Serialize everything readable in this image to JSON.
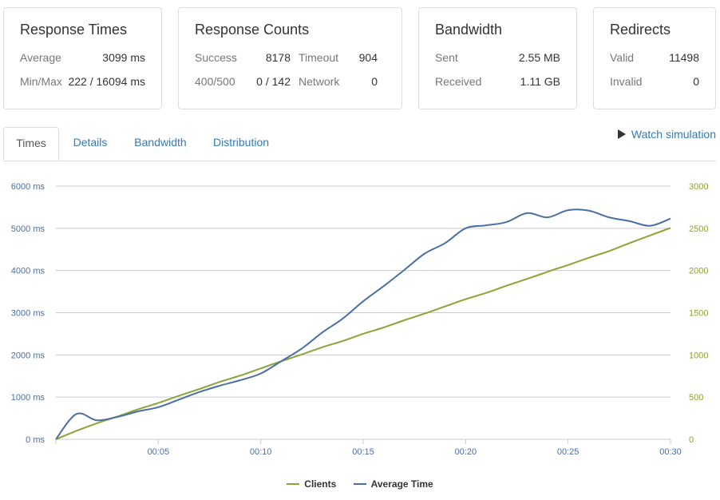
{
  "cards": {
    "response_times": {
      "title": "Response Times",
      "average_label": "Average",
      "average_value": "3099 ms",
      "minmax_label": "Min/Max",
      "minmax_value": "222 / 16094 ms"
    },
    "response_counts": {
      "title": "Response Counts",
      "success_label": "Success",
      "success_value": "8178",
      "timeout_label": "Timeout",
      "timeout_value": "904",
      "http_errors_label": "400/500",
      "http_errors_value": "0 / 142",
      "network_label": "Network",
      "network_value": "0"
    },
    "bandwidth": {
      "title": "Bandwidth",
      "sent_label": "Sent",
      "sent_value": "2.55 MB",
      "received_label": "Received",
      "received_value": "1.11 GB"
    },
    "redirects": {
      "title": "Redirects",
      "valid_label": "Valid",
      "valid_value": "11498",
      "invalid_label": "Invalid",
      "invalid_value": "0"
    }
  },
  "tabs": {
    "times": "Times",
    "details": "Details",
    "bandwidth": "Bandwidth",
    "distribution": "Distribution",
    "active": "times"
  },
  "watch_simulation": "Watch simulation",
  "chart_data": {
    "type": "line",
    "x_ticks": [
      "00:05",
      "00:10",
      "00:15",
      "00:20",
      "00:25",
      "00:30"
    ],
    "x_tick_values": [
      5,
      10,
      15,
      20,
      25,
      30
    ],
    "xlim": [
      0,
      30
    ],
    "y_left": {
      "ticks": [
        "0 ms",
        "1000 ms",
        "2000 ms",
        "3000 ms",
        "4000 ms",
        "5000 ms",
        "6000 ms"
      ],
      "lim": [
        0,
        6000
      ],
      "color": "#4a6fa5"
    },
    "y_right": {
      "ticks": [
        "0",
        "500",
        "1000",
        "1500",
        "2000",
        "2500",
        "3000"
      ],
      "lim": [
        0,
        3000
      ],
      "color": "#8aa536"
    },
    "grid": true,
    "legend_position": "bottom-center",
    "series": [
      {
        "name": "Clients",
        "axis": "right",
        "color": "#8aa536",
        "x": [
          0,
          1,
          2,
          3,
          4,
          5,
          6,
          7,
          8,
          9,
          10,
          11,
          12,
          13,
          14,
          15,
          16,
          17,
          18,
          19,
          20,
          21,
          22,
          23,
          24,
          25,
          26,
          27,
          28,
          29,
          30
        ],
        "y": [
          0,
          100,
          190,
          270,
          355,
          430,
          515,
          595,
          680,
          755,
          840,
          925,
          1005,
          1090,
          1165,
          1250,
          1325,
          1410,
          1490,
          1575,
          1660,
          1735,
          1820,
          1900,
          1985,
          2065,
          2150,
          2230,
          2325,
          2415,
          2505
        ]
      },
      {
        "name": "Average Time",
        "axis": "left",
        "color": "#4a6fa5",
        "x": [
          0,
          1,
          2,
          3,
          4,
          5,
          6,
          7,
          8,
          9,
          10,
          11,
          12,
          13,
          14,
          15,
          16,
          17,
          18,
          19,
          20,
          21,
          22,
          23,
          24,
          25,
          26,
          27,
          28,
          29,
          30
        ],
        "y": [
          0,
          600,
          450,
          530,
          660,
          760,
          940,
          1120,
          1270,
          1400,
          1560,
          1850,
          2150,
          2530,
          2860,
          3270,
          3630,
          4010,
          4400,
          4650,
          5000,
          5070,
          5150,
          5360,
          5260,
          5430,
          5420,
          5260,
          5170,
          5060,
          5230
        ]
      }
    ]
  }
}
